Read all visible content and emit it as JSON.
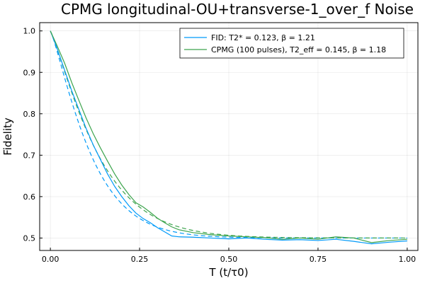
{
  "chart_data": {
    "type": "line",
    "title": "CPMG longitudinal-OU+transverse-1_over_f Noise",
    "xlabel": "T (t/τ0)",
    "ylabel": "Fidelity",
    "xlim": [
      -0.03,
      1.03
    ],
    "ylim": [
      0.47,
      1.02
    ],
    "xticks": [
      0.0,
      0.25,
      0.5,
      0.75,
      1.0
    ],
    "xtick_labels": [
      "0.00",
      "0.25",
      "0.50",
      "0.75",
      "1.00"
    ],
    "yticks": [
      0.5,
      0.6,
      0.7,
      0.8,
      0.9,
      1.0
    ],
    "ytick_labels": [
      "0.5",
      "0.6",
      "0.7",
      "0.8",
      "0.9",
      "1.0"
    ],
    "grid": true,
    "legend_position": "top-right",
    "series": [
      {
        "name": "FID: T2* = 0.123, β = 1.21",
        "color": "#009af9",
        "x": [
          0.0,
          0.02,
          0.04,
          0.06,
          0.08,
          0.1,
          0.12,
          0.14,
          0.16,
          0.18,
          0.2,
          0.22,
          0.24,
          0.26,
          0.28,
          0.3,
          0.32,
          0.34,
          0.36,
          0.4,
          0.45,
          0.5,
          0.55,
          0.6,
          0.65,
          0.7,
          0.75,
          0.8,
          0.85,
          0.9,
          0.95,
          1.0
        ],
        "y": [
          1.0,
          0.955,
          0.905,
          0.855,
          0.81,
          0.765,
          0.725,
          0.69,
          0.655,
          0.625,
          0.6,
          0.578,
          0.56,
          0.547,
          0.537,
          0.525,
          0.515,
          0.505,
          0.503,
          0.502,
          0.5,
          0.498,
          0.5,
          0.497,
          0.495,
          0.496,
          0.494,
          0.497,
          0.492,
          0.486,
          0.49,
          0.493
        ]
      },
      {
        "name": "CPMG (100 pulses), T2_eff = 0.145, β = 1.18",
        "color": "#3da44d",
        "x": [
          0.0,
          0.02,
          0.04,
          0.06,
          0.08,
          0.1,
          0.12,
          0.14,
          0.16,
          0.18,
          0.2,
          0.22,
          0.24,
          0.26,
          0.28,
          0.3,
          0.32,
          0.34,
          0.36,
          0.4,
          0.45,
          0.5,
          0.55,
          0.6,
          0.65,
          0.7,
          0.75,
          0.8,
          0.85,
          0.9,
          0.95,
          1.0
        ],
        "y": [
          1.0,
          0.962,
          0.922,
          0.875,
          0.832,
          0.79,
          0.752,
          0.718,
          0.686,
          0.655,
          0.628,
          0.605,
          0.585,
          0.575,
          0.562,
          0.548,
          0.537,
          0.527,
          0.52,
          0.513,
          0.508,
          0.505,
          0.503,
          0.501,
          0.497,
          0.5,
          0.497,
          0.503,
          0.5,
          0.489,
          0.494,
          0.497
        ]
      }
    ],
    "fits": [
      {
        "series": 0,
        "color": "#009af9",
        "T2": 0.123,
        "beta": 1.21,
        "baseline": 0.5
      },
      {
        "series": 1,
        "color": "#3da44d",
        "T2": 0.145,
        "beta": 1.18,
        "baseline": 0.5
      }
    ]
  }
}
